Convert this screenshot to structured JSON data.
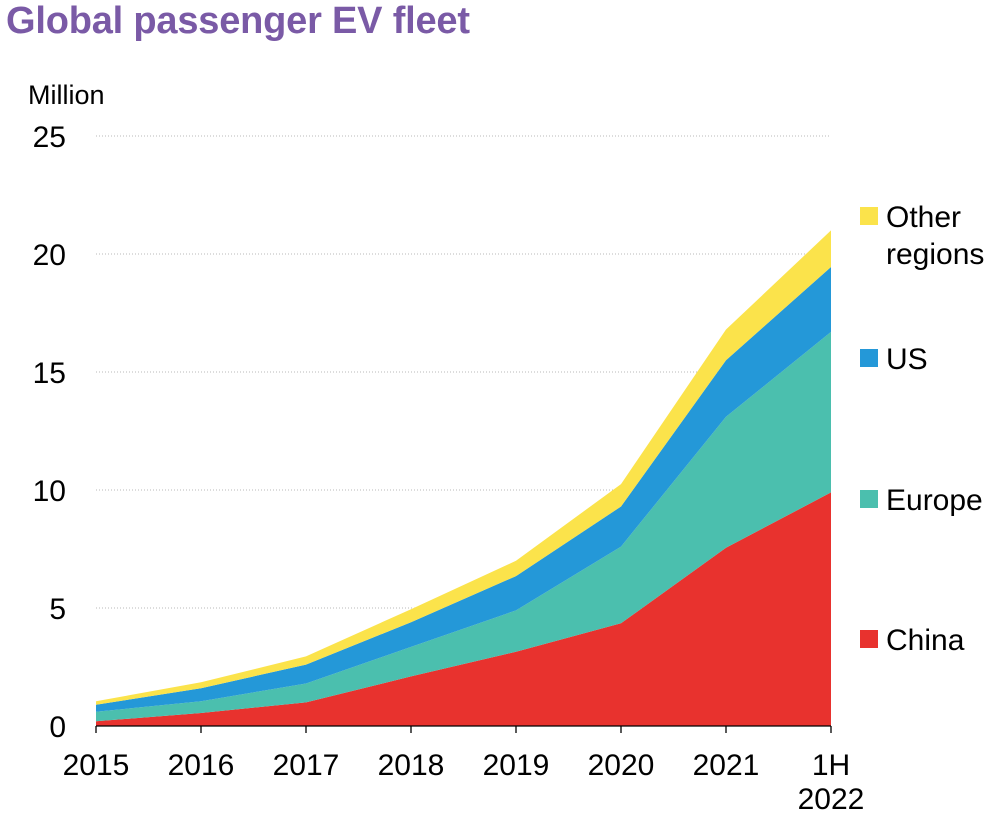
{
  "title": "Global passenger EV fleet",
  "chart_data": {
    "type": "area",
    "stacked": true,
    "title": "Global passenger EV fleet",
    "ylabel": "Million",
    "ylim": [
      0,
      25
    ],
    "yticks": [
      0,
      5,
      10,
      15,
      20,
      25
    ],
    "categories": [
      "2015",
      "2016",
      "2017",
      "2018",
      "2019",
      "2020",
      "2021",
      "1H 2022"
    ],
    "category_lines": [
      [
        "2015"
      ],
      [
        "2016"
      ],
      [
        "2017"
      ],
      [
        "2018"
      ],
      [
        "2019"
      ],
      [
        "2020"
      ],
      [
        "2021"
      ],
      [
        "1H",
        "2022"
      ]
    ],
    "grid": true,
    "legend_position": "right",
    "series": [
      {
        "name": "China",
        "label_lines": [
          "China"
        ],
        "color": "#e8322e",
        "values": [
          0.2,
          0.55,
          1.0,
          2.1,
          3.15,
          4.35,
          7.55,
          9.9
        ]
      },
      {
        "name": "Europe",
        "label_lines": [
          "Europe"
        ],
        "color": "#4bbfae",
        "values": [
          0.4,
          0.5,
          0.8,
          1.25,
          1.75,
          3.25,
          5.55,
          6.8
        ]
      },
      {
        "name": "US",
        "label_lines": [
          "US"
        ],
        "color": "#2498d8",
        "values": [
          0.3,
          0.55,
          0.8,
          1.05,
          1.45,
          1.7,
          2.4,
          2.75
        ]
      },
      {
        "name": "Other regions",
        "label_lines": [
          "Other",
          "regions"
        ],
        "color": "#fbe34b",
        "values": [
          0.15,
          0.25,
          0.35,
          0.55,
          0.65,
          0.95,
          1.3,
          1.55
        ]
      }
    ]
  }
}
